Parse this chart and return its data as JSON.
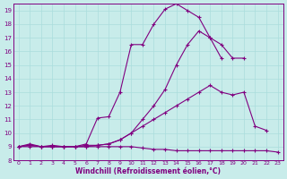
{
  "xlabel": "Windchill (Refroidissement éolien,°C)",
  "bg_color": "#c8ecea",
  "line_color": "#800080",
  "grid_color": "#aadddd",
  "xlim": [
    -0.5,
    23.5
  ],
  "ylim": [
    8,
    19.5
  ],
  "xticks": [
    0,
    1,
    2,
    3,
    4,
    5,
    6,
    7,
    8,
    9,
    10,
    11,
    12,
    13,
    14,
    15,
    16,
    17,
    18,
    19,
    20,
    21,
    22,
    23
  ],
  "yticks": [
    8,
    9,
    10,
    11,
    12,
    13,
    14,
    15,
    16,
    17,
    18,
    19
  ],
  "line1_x": [
    0,
    1,
    2,
    3,
    4,
    5,
    6,
    7,
    8,
    9,
    10,
    11,
    12,
    13,
    14,
    15,
    16,
    17,
    18,
    19,
    20,
    21,
    22,
    23
  ],
  "line1_y": [
    9.0,
    9.2,
    9.0,
    9.1,
    9.0,
    9.0,
    9.2,
    11.1,
    11.2,
    13.0,
    16.5,
    16.5,
    18.0,
    19.1,
    19.5,
    19.0,
    18.5,
    17.0,
    15.5,
    null,
    null,
    null,
    null,
    null
  ],
  "line2_x": [
    0,
    1,
    2,
    3,
    4,
    5,
    6,
    7,
    8,
    9,
    10,
    11,
    12,
    13,
    14,
    15,
    16,
    17,
    18,
    19,
    20,
    21,
    22,
    23
  ],
  "line2_y": [
    9.0,
    9.1,
    9.0,
    9.0,
    9.0,
    9.0,
    9.1,
    9.1,
    9.2,
    9.5,
    10.0,
    11.0,
    12.0,
    13.2,
    15.0,
    16.5,
    17.5,
    17.0,
    16.5,
    15.5,
    15.5,
    null,
    null,
    null
  ],
  "line3_x": [
    0,
    1,
    2,
    3,
    4,
    5,
    6,
    7,
    8,
    9,
    10,
    11,
    12,
    13,
    14,
    15,
    16,
    17,
    18,
    19,
    20,
    21,
    22,
    23
  ],
  "line3_y": [
    9.0,
    9.1,
    9.0,
    9.0,
    9.0,
    9.0,
    9.0,
    9.1,
    9.2,
    9.5,
    10.0,
    10.5,
    11.0,
    11.5,
    12.0,
    12.5,
    13.0,
    13.5,
    13.0,
    12.8,
    13.0,
    10.5,
    10.2,
    null
  ],
  "line4_x": [
    0,
    1,
    2,
    3,
    4,
    5,
    6,
    7,
    8,
    9,
    10,
    11,
    12,
    13,
    14,
    15,
    16,
    17,
    18,
    19,
    20,
    21,
    22,
    23
  ],
  "line4_y": [
    9.0,
    9.0,
    9.0,
    9.0,
    9.0,
    9.0,
    9.0,
    9.0,
    9.0,
    9.0,
    9.0,
    8.9,
    8.8,
    8.8,
    8.7,
    8.7,
    8.7,
    8.7,
    8.7,
    8.7,
    8.7,
    8.7,
    8.7,
    8.6
  ]
}
